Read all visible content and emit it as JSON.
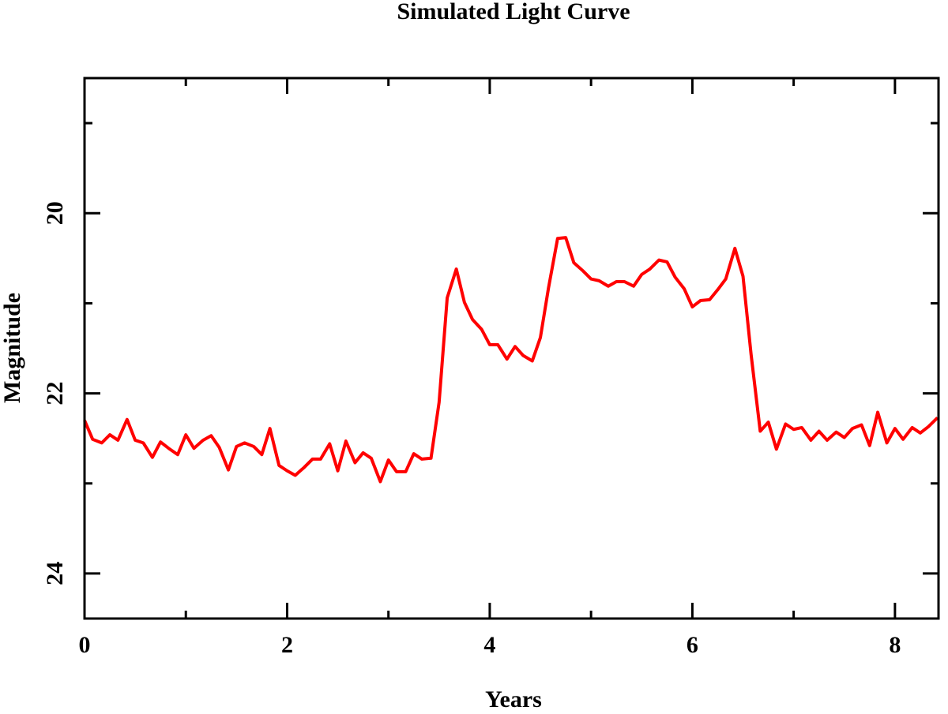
{
  "chart_data": {
    "type": "line",
    "title": "Simulated Light Curve",
    "x_label": "Years",
    "y_label": "Magnitude",
    "xlim": [
      0,
      8.43
    ],
    "ylim": [
      24.5,
      18.5
    ],
    "xticks": [
      0,
      2,
      4,
      6,
      8
    ],
    "yticks": [
      20,
      22,
      24
    ],
    "xminorticks": [
      1,
      3,
      5,
      7
    ],
    "yminorticks": [
      19,
      21,
      23
    ],
    "grid": false,
    "x": [
      0,
      0.08,
      0.17,
      0.25,
      0.33,
      0.42,
      0.5,
      0.58,
      0.67,
      0.75,
      0.83,
      0.92,
      1,
      1.08,
      1.17,
      1.25,
      1.33,
      1.42,
      1.5,
      1.58,
      1.67,
      1.75,
      1.83,
      1.92,
      2,
      2.08,
      2.17,
      2.25,
      2.33,
      2.42,
      2.5,
      2.58,
      2.67,
      2.75,
      2.83,
      2.92,
      3,
      3.08,
      3.17,
      3.25,
      3.33,
      3.42,
      3.5,
      3.58,
      3.67,
      3.75,
      3.83,
      3.92,
      4,
      4.08,
      4.17,
      4.25,
      4.33,
      4.42,
      4.5,
      4.58,
      4.67,
      4.75,
      4.83,
      4.92,
      5,
      5.08,
      5.17,
      5.25,
      5.33,
      5.42,
      5.5,
      5.58,
      5.67,
      5.75,
      5.83,
      5.92,
      6,
      6.08,
      6.17,
      6.25,
      6.33,
      6.42,
      6.5,
      6.58,
      6.67,
      6.75,
      6.83,
      6.92,
      7,
      7.08,
      7.17,
      7.25,
      7.33,
      7.42,
      7.5,
      7.58,
      7.67,
      7.75,
      7.83,
      7.92,
      8,
      8.08,
      8.17,
      8.25,
      8.33,
      8.42
    ],
    "series": [
      {
        "color": "#ff0000",
        "values": [
          22.3,
          22.51,
          22.55,
          22.46,
          22.52,
          22.29,
          22.52,
          22.55,
          22.71,
          22.54,
          22.61,
          22.68,
          22.46,
          22.61,
          22.52,
          22.47,
          22.6,
          22.85,
          22.59,
          22.55,
          22.59,
          22.68,
          22.39,
          22.8,
          22.86,
          22.91,
          22.82,
          22.73,
          22.73,
          22.56,
          22.86,
          22.53,
          22.77,
          22.66,
          22.72,
          22.98,
          22.74,
          22.87,
          22.87,
          22.67,
          22.73,
          22.72,
          22.1,
          20.94,
          20.62,
          20.99,
          21.18,
          21.29,
          21.46,
          21.46,
          21.62,
          21.48,
          21.58,
          21.64,
          21.38,
          20.83,
          20.28,
          20.27,
          20.55,
          20.64,
          20.73,
          20.75,
          20.81,
          20.76,
          20.76,
          20.81,
          20.68,
          20.62,
          20.52,
          20.54,
          20.71,
          20.84,
          21.04,
          20.97,
          20.96,
          20.85,
          20.73,
          20.39,
          20.7,
          21.57,
          22.42,
          22.32,
          22.62,
          22.34,
          22.4,
          22.38,
          22.52,
          22.42,
          22.52,
          22.43,
          22.49,
          22.39,
          22.35,
          22.58,
          22.21,
          22.55,
          22.39,
          22.51,
          22.38,
          22.44,
          22.37,
          22.27
        ]
      }
    ]
  }
}
